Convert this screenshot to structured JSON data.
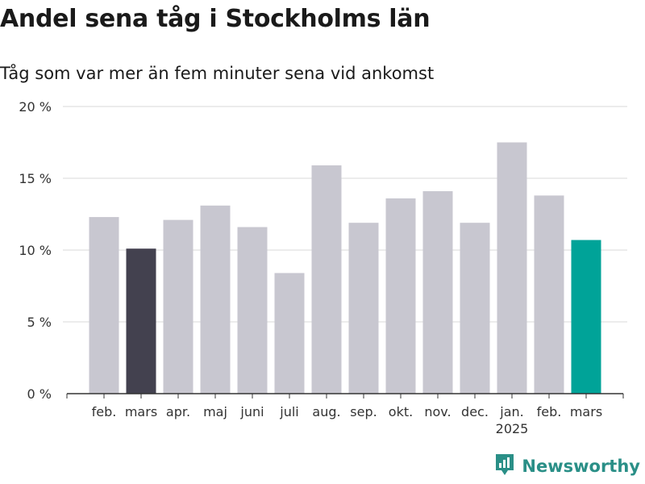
{
  "title": "Andel sena tåg i Stockholms län",
  "subtitle": "Tåg som var mer än fem minuter sena vid ankomst",
  "brand": {
    "name": "Newsworthy",
    "icon": "newsworthy-logo-icon"
  },
  "colors": {
    "default_bar": "#c8c7d0",
    "highlight_prev_year": "#43414f",
    "highlight_current": "#00a398",
    "grid": "#d9d9d9"
  },
  "chart_data": {
    "type": "bar",
    "categories": [
      "feb.",
      "mars",
      "apr.",
      "maj",
      "juni",
      "juli",
      "aug.",
      "sep.",
      "okt.",
      "nov.",
      "dec.",
      "jan.",
      "feb.",
      "mars"
    ],
    "year_labels": [
      "",
      "",
      "",
      "",
      "",
      "",
      "",
      "",
      "",
      "",
      "",
      "2025",
      "",
      ""
    ],
    "values": [
      12.3,
      10.1,
      12.1,
      13.1,
      11.6,
      8.4,
      15.9,
      11.9,
      13.6,
      14.1,
      11.9,
      17.5,
      13.8,
      10.7
    ],
    "highlight": [
      "default",
      "previous_year",
      "default",
      "default",
      "default",
      "default",
      "default",
      "default",
      "default",
      "default",
      "default",
      "default",
      "default",
      "current"
    ],
    "ylim": [
      0,
      20
    ],
    "yticks": [
      0,
      5,
      10,
      15,
      20
    ],
    "ytick_labels": [
      "0 %",
      "5 %",
      "10 %",
      "15 %",
      "20 %"
    ],
    "grid": true
  }
}
